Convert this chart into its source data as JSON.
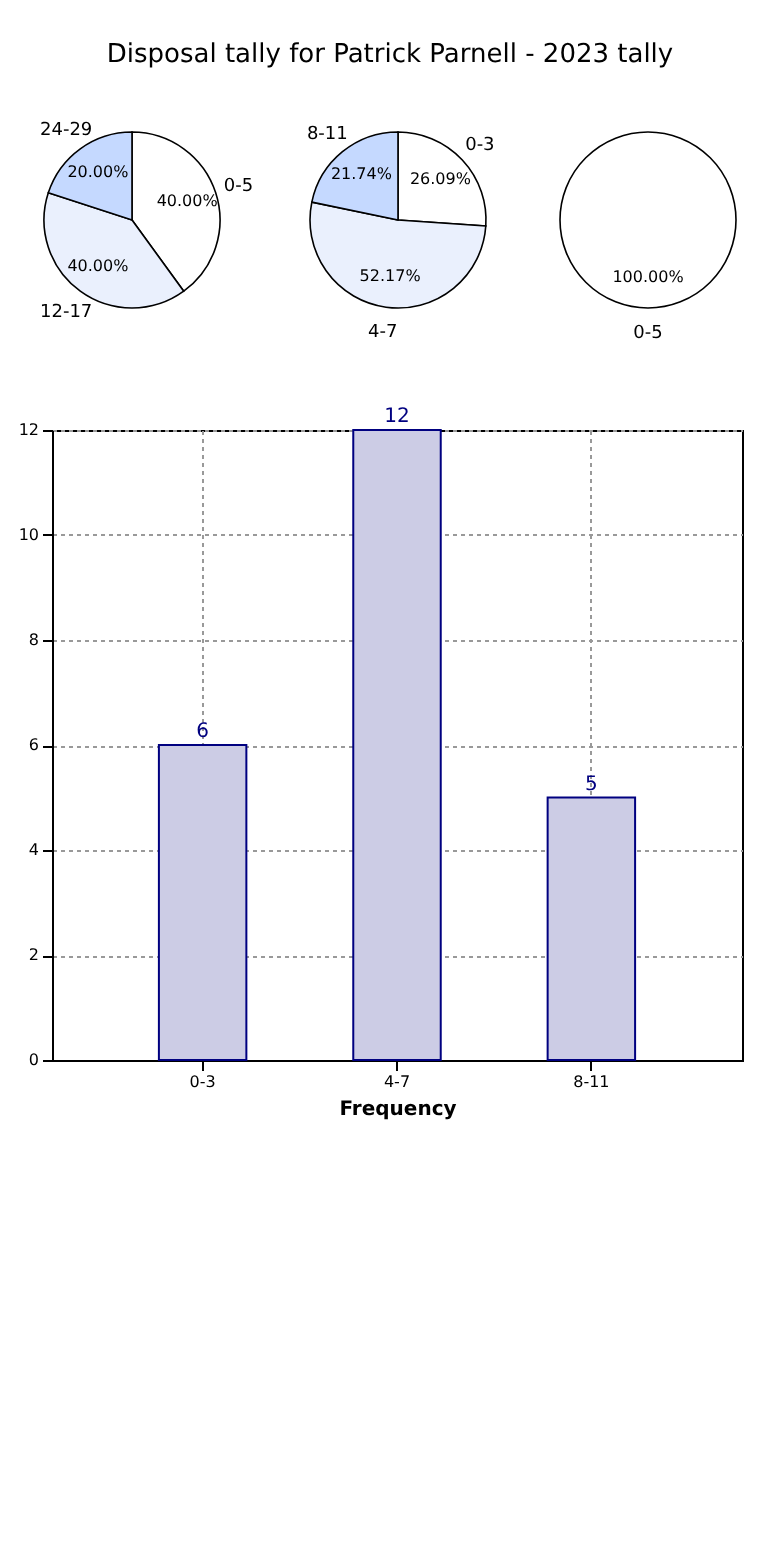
{
  "chart_data": [
    {
      "type": "pie",
      "title": "Disposal tally for Patrick Parnell - 2023 tally",
      "categories": [
        "0-5",
        "12-17",
        "24-29"
      ],
      "values": [
        40,
        40,
        20
      ],
      "value_labels": [
        "40.00%",
        "40.00%",
        "20.00%"
      ],
      "colors": [
        "#ffffff",
        "#eaf0fd",
        "#c5d9ff"
      ]
    },
    {
      "type": "pie",
      "categories": [
        "0-3",
        "4-7",
        "8-11"
      ],
      "values": [
        26.09,
        52.17,
        21.74
      ],
      "value_labels": [
        "26.09%",
        "52.17%",
        "21.74%"
      ],
      "colors": [
        "#ffffff",
        "#eaf0fd",
        "#c5d9ff"
      ]
    },
    {
      "type": "pie",
      "categories": [
        "0-5"
      ],
      "values": [
        100
      ],
      "value_labels": [
        "100.00%"
      ],
      "colors": [
        "#ffffff"
      ]
    },
    {
      "type": "bar",
      "categories": [
        "0-3",
        "4-7",
        "8-11"
      ],
      "values": [
        6,
        12,
        5
      ],
      "color": "#cccce5",
      "xlabel": "Frequency",
      "ylim": [
        0,
        12
      ],
      "yticks": [
        0,
        2,
        4,
        6,
        8,
        10,
        12
      ],
      "grid": true,
      "data_labels": true
    }
  ]
}
